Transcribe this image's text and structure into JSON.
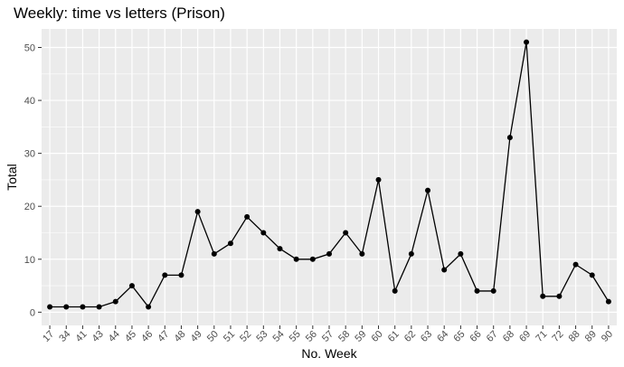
{
  "chart_data": {
    "type": "line",
    "title": "Weekly: time vs letters (Prison)",
    "xlabel": "No. Week",
    "ylabel": "Total",
    "categories": [
      "17",
      "34",
      "41",
      "43",
      "44",
      "45",
      "46",
      "47",
      "48",
      "49",
      "50",
      "51",
      "52",
      "53",
      "54",
      "55",
      "56",
      "57",
      "58",
      "59",
      "60",
      "61",
      "62",
      "63",
      "64",
      "65",
      "66",
      "67",
      "68",
      "69",
      "71",
      "72",
      "88",
      "89",
      "90"
    ],
    "values": [
      1,
      1,
      1,
      1,
      2,
      5,
      1,
      7,
      7,
      19,
      11,
      13,
      18,
      15,
      12,
      10,
      10,
      11,
      15,
      11,
      25,
      4,
      11,
      23,
      8,
      11,
      4,
      4,
      33,
      51,
      3,
      3,
      9,
      7,
      2
    ],
    "ylim": [
      -2.5,
      53.5
    ],
    "yticks": [
      0,
      10,
      20,
      30,
      40,
      50
    ],
    "grid": true,
    "panel_background": "#ebebeb",
    "grid_color": "#ffffff",
    "series_color": "#000000"
  }
}
